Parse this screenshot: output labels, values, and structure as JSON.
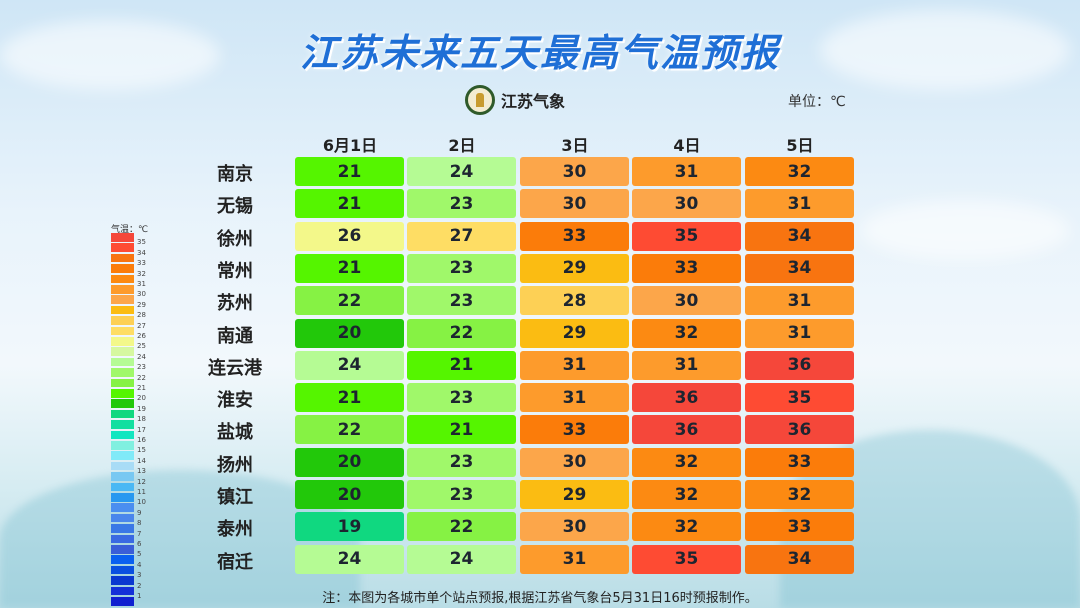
{
  "title": "江苏未来五天最高气温预报",
  "logo_text": "江苏气象",
  "unit": "单位：℃",
  "columns": [
    "6月1日",
    "2日",
    "3日",
    "4日",
    "5日"
  ],
  "rows": [
    {
      "city": "南京",
      "temps": [
        21,
        24,
        30,
        31,
        32
      ]
    },
    {
      "city": "无锡",
      "temps": [
        21,
        23,
        30,
        30,
        31
      ]
    },
    {
      "city": "徐州",
      "temps": [
        26,
        27,
        33,
        35,
        34
      ]
    },
    {
      "city": "常州",
      "temps": [
        21,
        23,
        29,
        33,
        34
      ]
    },
    {
      "city": "苏州",
      "temps": [
        22,
        23,
        28,
        30,
        31
      ]
    },
    {
      "city": "南通",
      "temps": [
        20,
        22,
        29,
        32,
        31
      ]
    },
    {
      "city": "连云港",
      "temps": [
        24,
        21,
        31,
        31,
        36
      ]
    },
    {
      "city": "淮安",
      "temps": [
        21,
        23,
        31,
        36,
        35
      ]
    },
    {
      "city": "盐城",
      "temps": [
        22,
        21,
        33,
        36,
        36
      ]
    },
    {
      "city": "扬州",
      "temps": [
        20,
        23,
        30,
        32,
        33
      ]
    },
    {
      "city": "镇江",
      "temps": [
        20,
        23,
        29,
        32,
        32
      ]
    },
    {
      "city": "泰州",
      "temps": [
        19,
        22,
        30,
        32,
        33
      ]
    },
    {
      "city": "宿迁",
      "temps": [
        24,
        24,
        31,
        35,
        34
      ]
    }
  ],
  "legend": {
    "title": "气温：℃",
    "labels": [
      35,
      34,
      33,
      32,
      31,
      30,
      29,
      28,
      27,
      26,
      25,
      24,
      23,
      22,
      21,
      20,
      19,
      18,
      17,
      16,
      15,
      14,
      13,
      12,
      11,
      10,
      9,
      8,
      7,
      6,
      5,
      4,
      3,
      2,
      1
    ]
  },
  "colors": {
    "36": "#f5473a",
    "35": "#fe4b33",
    "34": "#f87410",
    "33": "#fb7c0a",
    "32": "#fc8a12",
    "31": "#fd9b2c",
    "30": "#fca64a",
    "29": "#fbbc12",
    "28": "#fdd055",
    "27": "#fedd64",
    "26": "#f3f88a",
    "25": "#d6f8a0",
    "24": "#b5fb94",
    "23": "#a0f86a",
    "22": "#86f244",
    "21": "#55f500",
    "20": "#22c80a",
    "19": "#10d880",
    "18": "#12dfa0",
    "17": "#10e6c0",
    "16": "#80f0e0",
    "15": "#80eaf8",
    "14": "#a8dcf6",
    "13": "#78c8f2",
    "12": "#4ab8f4",
    "11": "#2898f0",
    "10": "#4a8ef0",
    "9": "#4a86ec",
    "8": "#3a78e6",
    "7": "#3a6ae2",
    "6": "#3a5ed8",
    "5": "#0a60f0",
    "4": "#0a50e0",
    "3": "#0a38d0",
    "2": "#1430d8",
    "1": "#1020d0",
    "0": "#0a18c8"
  },
  "note": "注：本图为各城市单个站点预报,根据江苏省气象台5月31日16时预报制作。"
}
